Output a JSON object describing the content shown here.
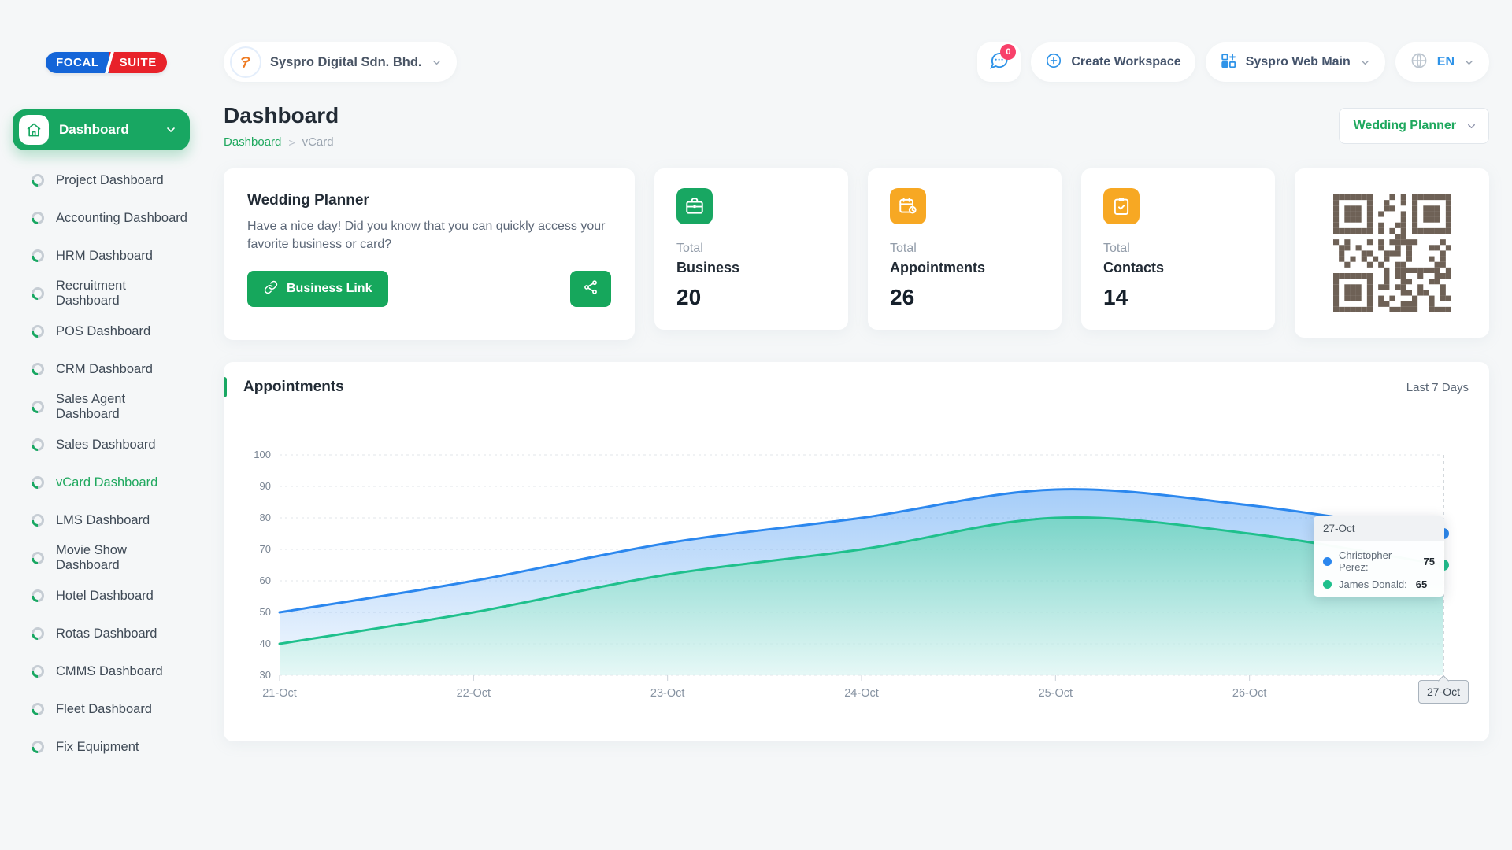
{
  "brand": {
    "logo_left": "FOCAL",
    "logo_right": "SUITE",
    "logo_blue": "#1465d8",
    "logo_red": "#e8222a"
  },
  "header": {
    "company_name": "Syspro Digital Sdn. Bhd.",
    "messages_badge": "0",
    "create_workspace_label": "Create Workspace",
    "workspace_name": "Syspro Web Main",
    "language": "EN"
  },
  "page": {
    "title": "Dashboard",
    "breadcrumb_root": "Dashboard",
    "breadcrumb_sep": ">",
    "breadcrumb_current": "vCard",
    "business_selector": "Wedding Planner"
  },
  "sidebar": {
    "main_item": "Dashboard",
    "items": [
      {
        "label": "Project Dashboard",
        "active": false
      },
      {
        "label": "Accounting Dashboard",
        "active": false
      },
      {
        "label": "HRM Dashboard",
        "active": false
      },
      {
        "label": "Recruitment Dashboard",
        "active": false
      },
      {
        "label": "POS Dashboard",
        "active": false
      },
      {
        "label": "CRM Dashboard",
        "active": false
      },
      {
        "label": "Sales Agent Dashboard",
        "active": false
      },
      {
        "label": "Sales Dashboard",
        "active": false
      },
      {
        "label": "vCard Dashboard",
        "active": true
      },
      {
        "label": "LMS Dashboard",
        "active": false
      },
      {
        "label": "Movie Show Dashboard",
        "active": false
      },
      {
        "label": "Hotel Dashboard",
        "active": false
      },
      {
        "label": "Rotas Dashboard",
        "active": false
      },
      {
        "label": "CMMS Dashboard",
        "active": false
      },
      {
        "label": "Fleet Dashboard",
        "active": false
      },
      {
        "label": "Fix Equipment",
        "active": false
      }
    ]
  },
  "welcome_card": {
    "title": "Wedding Planner",
    "message": "Have a nice day! Did you know that you can quickly access your favorite business or card?",
    "business_link_label": "Business Link"
  },
  "stats": [
    {
      "label": "Total",
      "name": "Business",
      "value": "20",
      "icon": "briefcase-icon",
      "color": "#18a762"
    },
    {
      "label": "Total",
      "name": "Appointments",
      "value": "26",
      "icon": "calendar-clock-icon",
      "color": "#f7a823"
    },
    {
      "label": "Total",
      "name": "Contacts",
      "value": "14",
      "icon": "clipboard-check-icon",
      "color": "#f7a823"
    }
  ],
  "qr_card": {
    "color": "#6e6156"
  },
  "chart_card": {
    "title": "Appointments",
    "range_label": "Last 7 Days",
    "accent_color": "#18a762"
  },
  "chart_data": {
    "type": "area",
    "x": [
      "21-Oct",
      "22-Oct",
      "23-Oct",
      "24-Oct",
      "25-Oct",
      "26-Oct",
      "27-Oct"
    ],
    "series": [
      {
        "name": "Christopher Perez",
        "color": "#2b87ee",
        "fill_top": "rgba(47,139,240,0.50)",
        "fill_bottom": "rgba(47,139,240,0.05)",
        "values": [
          50,
          60,
          72,
          80,
          89,
          84,
          75
        ]
      },
      {
        "name": "James Donald",
        "color": "#1fc08c",
        "fill_top": "rgba(47,199,152,0.70)",
        "fill_bottom": "rgba(222,247,242,0.65)",
        "values": [
          40,
          50,
          62,
          70,
          80,
          75,
          65
        ]
      }
    ],
    "ylim": [
      30,
      100
    ],
    "ytick_step": 10,
    "grid": "dashed horizontal",
    "legend_position": "none",
    "highlighted_x": "27-Oct",
    "tooltip": {
      "title": "27-Oct",
      "entries": [
        {
          "label": "Christopher Perez:",
          "value": "75"
        },
        {
          "label": "James Donald:",
          "value": "65"
        }
      ]
    }
  }
}
